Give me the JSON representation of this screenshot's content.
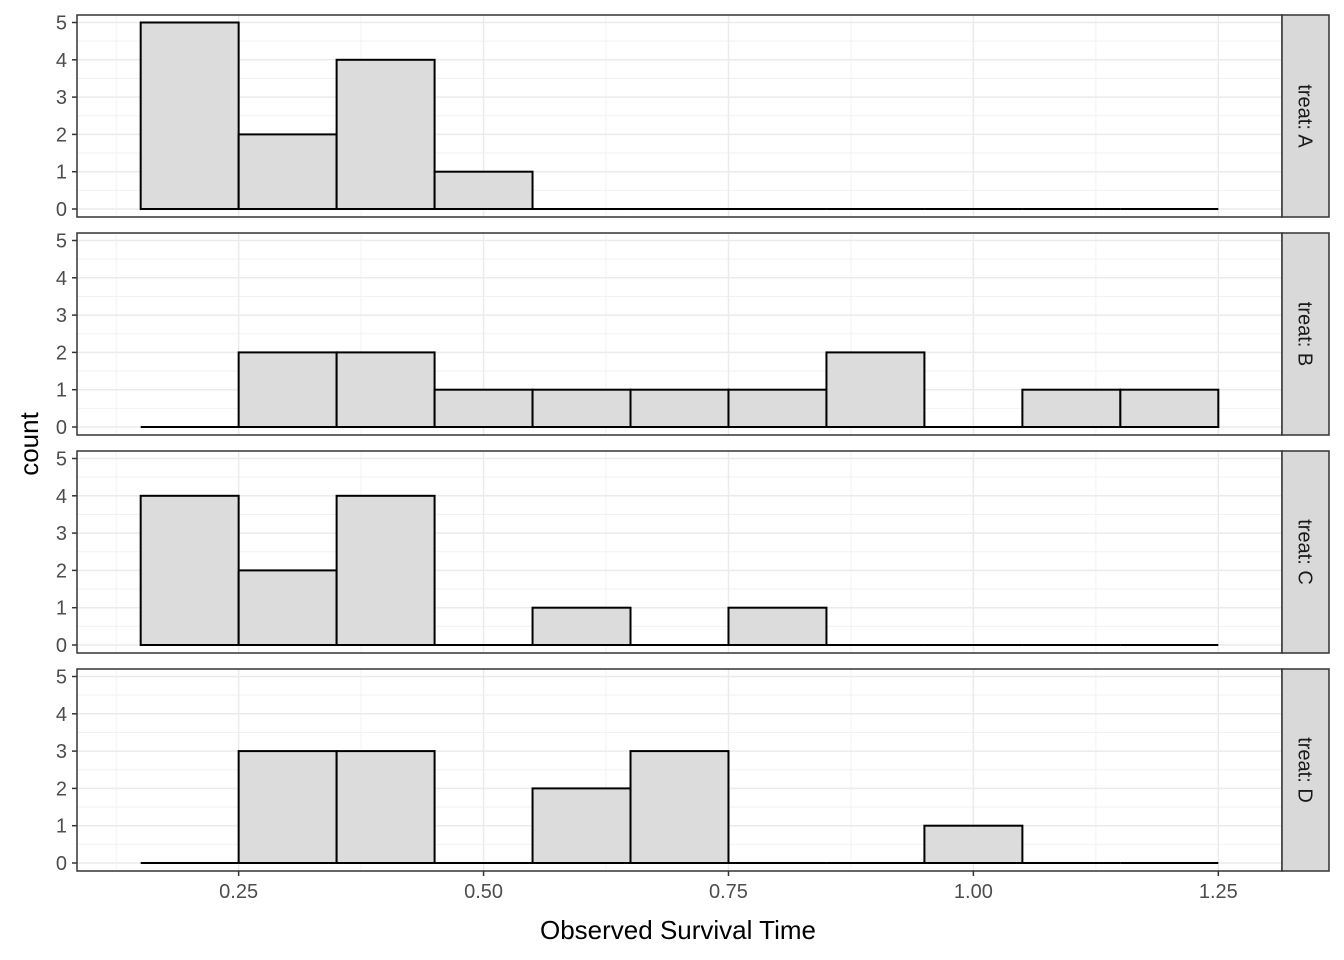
{
  "chart_data": {
    "type": "bar",
    "subtype": "faceted-histogram",
    "xlabel": "Observed Survival Time",
    "ylabel": "count",
    "xlim": [
      0.085,
      1.315
    ],
    "ylim": [
      0,
      5.2
    ],
    "x_ticks": [
      {
        "value": 0.25,
        "label": "0.25"
      },
      {
        "value": 0.5,
        "label": "0.50"
      },
      {
        "value": 0.75,
        "label": "0.75"
      },
      {
        "value": 1.0,
        "label": "1.00"
      },
      {
        "value": 1.25,
        "label": "1.25"
      }
    ],
    "y_ticks": [
      {
        "value": 0,
        "label": "0"
      },
      {
        "value": 1,
        "label": "1"
      },
      {
        "value": 2,
        "label": "2"
      },
      {
        "value": 3,
        "label": "3"
      },
      {
        "value": 4,
        "label": "4"
      },
      {
        "value": 5,
        "label": "5"
      }
    ],
    "bin_edges": [
      0.15,
      0.25,
      0.35,
      0.45,
      0.55,
      0.65,
      0.75,
      0.85,
      0.95,
      1.05,
      1.15,
      1.25
    ],
    "grid": true,
    "bar_fill": "#dcdcdc",
    "bar_stroke": "#000000",
    "strip_fill": "#d9d9d9",
    "panels": [
      {
        "label": "treat: A",
        "counts": [
          5,
          2,
          4,
          1,
          0,
          0,
          0,
          0,
          0,
          0,
          0
        ]
      },
      {
        "label": "treat: B",
        "counts": [
          0,
          2,
          2,
          1,
          1,
          1,
          1,
          2,
          0,
          1,
          1
        ]
      },
      {
        "label": "treat: C",
        "counts": [
          4,
          2,
          4,
          0,
          1,
          0,
          1,
          0,
          0,
          0,
          0
        ]
      },
      {
        "label": "treat: D",
        "counts": [
          0,
          3,
          3,
          0,
          2,
          3,
          0,
          0,
          1,
          0,
          0
        ]
      }
    ]
  }
}
